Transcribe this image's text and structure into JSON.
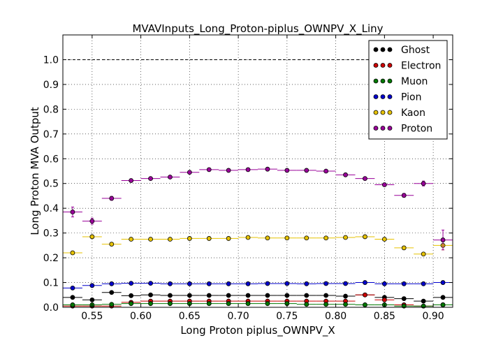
{
  "chart_data": {
    "type": "scatter",
    "title": "MVAVInputs_Long_Proton-piplus_OWNPV_X_Liny",
    "xlabel": "Long Proton piplus_OWNPV_X",
    "ylabel": "Long Proton MVA Output",
    "xlim": [
      0.52,
      0.92
    ],
    "ylim": [
      0.0,
      1.1
    ],
    "xticks": [
      "0.55",
      "0.60",
      "0.65",
      "0.70",
      "0.75",
      "0.80",
      "0.85",
      "0.90"
    ],
    "yticks": [
      "0.0",
      "0.1",
      "0.2",
      "0.3",
      "0.4",
      "0.5",
      "0.6",
      "0.7",
      "0.8",
      "0.9",
      "1.0"
    ],
    "grid": true,
    "reference_line": 1.0,
    "legend_position": "top-right",
    "bin_width": 0.02,
    "x": [
      0.53,
      0.55,
      0.57,
      0.59,
      0.61,
      0.63,
      0.65,
      0.67,
      0.69,
      0.71,
      0.73,
      0.75,
      0.77,
      0.79,
      0.81,
      0.83,
      0.85,
      0.87,
      0.89,
      0.91
    ],
    "series": [
      {
        "name": "Ghost",
        "color": "#000000",
        "values": [
          0.04,
          0.03,
          0.06,
          0.047,
          0.05,
          0.048,
          0.048,
          0.048,
          0.048,
          0.048,
          0.048,
          0.048,
          0.048,
          0.048,
          0.045,
          0.05,
          0.04,
          0.035,
          0.025,
          0.04
        ],
        "errors": [
          0.003,
          0.003,
          0.003,
          0.002,
          0.002,
          0.002,
          0.002,
          0.002,
          0.002,
          0.002,
          0.002,
          0.002,
          0.002,
          0.002,
          0.002,
          0.002,
          0.003,
          0.003,
          0.003,
          0.004
        ]
      },
      {
        "name": "Electron",
        "color": "#cc0000",
        "values": [
          0.005,
          0.005,
          0.005,
          0.02,
          0.025,
          0.025,
          0.025,
          0.025,
          0.025,
          0.025,
          0.025,
          0.025,
          0.025,
          0.025,
          0.025,
          0.05,
          0.03,
          0.01,
          0.005,
          0.01
        ],
        "errors": [
          0.002,
          0.002,
          0.002,
          0.002,
          0.002,
          0.002,
          0.002,
          0.002,
          0.002,
          0.002,
          0.002,
          0.002,
          0.002,
          0.002,
          0.002,
          0.003,
          0.003,
          0.002,
          0.002,
          0.002
        ]
      },
      {
        "name": "Muon",
        "color": "#007700",
        "values": [
          0.01,
          0.01,
          0.012,
          0.015,
          0.015,
          0.015,
          0.015,
          0.015,
          0.015,
          0.015,
          0.015,
          0.015,
          0.012,
          0.012,
          0.012,
          0.01,
          0.01,
          0.005,
          0.005,
          0.01
        ],
        "errors": [
          0.002,
          0.002,
          0.002,
          0.002,
          0.002,
          0.002,
          0.002,
          0.002,
          0.002,
          0.002,
          0.002,
          0.002,
          0.002,
          0.002,
          0.002,
          0.002,
          0.002,
          0.002,
          0.002,
          0.002
        ]
      },
      {
        "name": "Pion",
        "color": "#0000cc",
        "values": [
          0.078,
          0.088,
          0.095,
          0.097,
          0.097,
          0.095,
          0.095,
          0.095,
          0.095,
          0.095,
          0.096,
          0.096,
          0.095,
          0.096,
          0.096,
          0.1,
          0.095,
          0.095,
          0.095,
          0.1
        ],
        "errors": [
          0.004,
          0.003,
          0.003,
          0.002,
          0.002,
          0.002,
          0.002,
          0.002,
          0.002,
          0.002,
          0.002,
          0.002,
          0.002,
          0.002,
          0.002,
          0.002,
          0.002,
          0.003,
          0.003,
          0.004
        ]
      },
      {
        "name": "Kaon",
        "color": "#e6c200",
        "values": [
          0.22,
          0.285,
          0.255,
          0.275,
          0.275,
          0.275,
          0.278,
          0.278,
          0.278,
          0.282,
          0.28,
          0.28,
          0.28,
          0.28,
          0.282,
          0.285,
          0.275,
          0.24,
          0.215,
          0.25
        ],
        "errors": [
          0.006,
          0.005,
          0.004,
          0.003,
          0.003,
          0.003,
          0.003,
          0.003,
          0.003,
          0.003,
          0.003,
          0.003,
          0.003,
          0.003,
          0.003,
          0.003,
          0.004,
          0.005,
          0.006,
          0.018
        ]
      },
      {
        "name": "Proton",
        "color": "#990099",
        "values": [
          0.385,
          0.348,
          0.44,
          0.512,
          0.52,
          0.526,
          0.545,
          0.556,
          0.553,
          0.556,
          0.558,
          0.553,
          0.553,
          0.55,
          0.535,
          0.52,
          0.495,
          0.452,
          0.5,
          0.272
        ],
        "errors": [
          0.02,
          0.012,
          0.008,
          0.005,
          0.004,
          0.004,
          0.004,
          0.004,
          0.004,
          0.004,
          0.004,
          0.004,
          0.004,
          0.004,
          0.004,
          0.005,
          0.006,
          0.008,
          0.01,
          0.04
        ]
      }
    ]
  }
}
